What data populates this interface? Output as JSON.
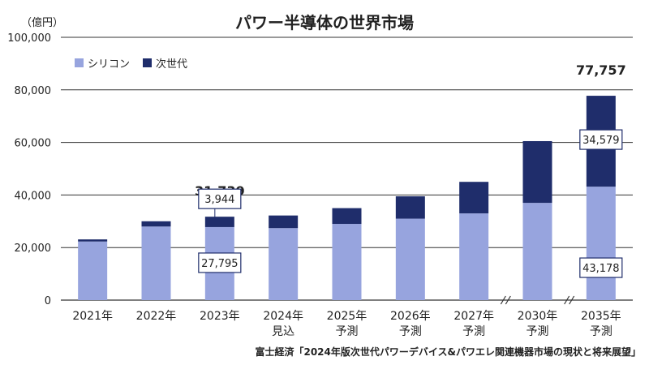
{
  "title": "パワー半導体の世界市場",
  "unit_label": "（億円）",
  "source": "富士経済「2024年版次世代パワーデバイス&パワエレ関連機器市場の現状と将来展望」",
  "colors": {
    "silicon": "#97A4DE",
    "nextgen": "#1F2D6B",
    "grid": "#333333",
    "callout_border": "#1F2D6B"
  },
  "chart_data": {
    "type": "bar",
    "stacked": true,
    "categories": [
      [
        "2021年"
      ],
      [
        "2022年"
      ],
      [
        "2023年"
      ],
      [
        "2024年",
        "見込"
      ],
      [
        "2025年",
        "予測"
      ],
      [
        "2026年",
        "予測"
      ],
      [
        "2027年",
        "予測"
      ],
      [
        "2030年",
        "予測"
      ],
      [
        "2035年",
        "予測"
      ]
    ],
    "series": [
      {
        "name": "シリコン",
        "values": [
          22300,
          28000,
          27795,
          27400,
          29000,
          31000,
          33000,
          37000,
          43178
        ]
      },
      {
        "name": "次世代",
        "values": [
          800,
          2000,
          3944,
          4800,
          6000,
          8500,
          12000,
          23500,
          34579
        ]
      }
    ],
    "ylim": [
      0,
      100000
    ],
    "yticks": [
      0,
      20000,
      40000,
      60000,
      80000,
      100000
    ],
    "ytick_labels": [
      "0",
      "20,000",
      "40,000",
      "60,000",
      "80,000",
      "100,000"
    ],
    "axis_breaks": [
      "2027年–2030年",
      "2030年–2035年"
    ],
    "total_labels": [
      {
        "category_index": 2,
        "text": "31,739"
      },
      {
        "category_index": 8,
        "text": "77,757"
      }
    ],
    "segment_labels": [
      {
        "category_index": 2,
        "series": 0,
        "text": "27,795"
      },
      {
        "category_index": 2,
        "series": 1,
        "text": "3,944"
      },
      {
        "category_index": 8,
        "series": 0,
        "text": "43,178"
      },
      {
        "category_index": 8,
        "series": 1,
        "text": "34,579"
      }
    ],
    "grid": true,
    "legend_position": "top-left"
  }
}
